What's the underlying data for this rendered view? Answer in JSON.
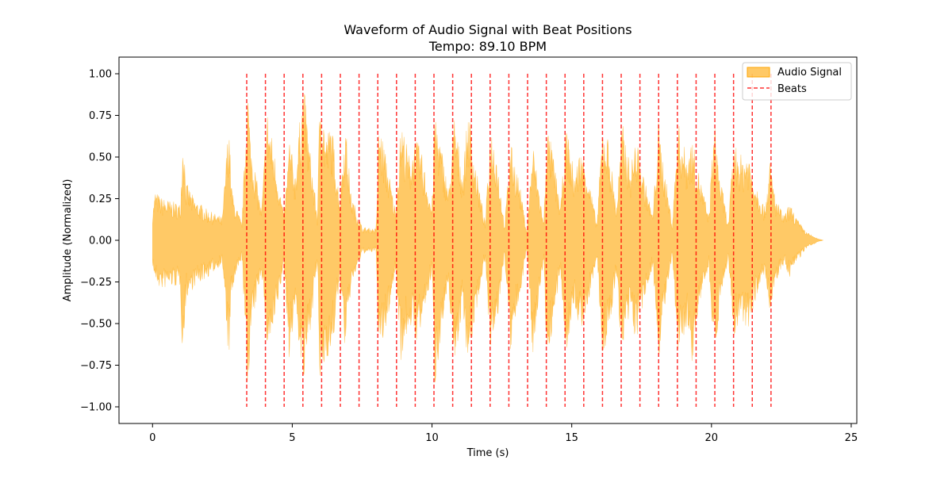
{
  "chart_data": {
    "type": "area",
    "title": "Waveform of Audio Signal with Beat Positions",
    "subtitle": "Tempo: 89.10 BPM",
    "xlabel": "Time (s)",
    "ylabel": "Amplitude (Normalized)",
    "xlim": [
      -1.2,
      25.2
    ],
    "ylim": [
      -1.1,
      1.1
    ],
    "x_ticks": [
      0,
      5,
      10,
      15,
      20,
      25
    ],
    "x_tick_labels": [
      "0",
      "5",
      "10",
      "15",
      "20",
      "25"
    ],
    "y_ticks": [
      1.0,
      0.75,
      0.5,
      0.25,
      0.0,
      -0.25,
      -0.5,
      -0.75,
      -1.0
    ],
    "y_tick_labels": [
      "1.00",
      "0.75",
      "0.50",
      "0.25",
      "0.00",
      "−0.25",
      "−0.50",
      "−0.75",
      "−1.00"
    ],
    "grid": false,
    "legend_position": "top-right",
    "series": [
      {
        "name": "Audio Signal",
        "kind": "filled-waveform",
        "color": "#ffa500",
        "envelope": {
          "x": [
            0.0,
            0.1,
            0.3,
            0.6,
            1.0,
            1.05,
            1.1,
            1.2,
            1.5,
            2.0,
            2.5,
            2.7,
            2.75,
            2.8,
            2.9,
            3.2,
            3.4,
            3.5,
            3.9,
            4.1,
            4.3,
            4.7,
            4.9,
            5.1,
            5.4,
            5.6,
            5.9,
            6.0,
            6.2,
            6.4,
            6.7,
            6.9,
            7.1,
            7.5,
            8.0,
            8.1,
            8.3,
            8.7,
            8.9,
            9.2,
            9.4,
            9.6,
            10.0,
            10.1,
            10.3,
            10.6,
            10.8,
            11.1,
            11.3,
            11.5,
            11.9,
            12.1,
            12.3,
            12.6,
            12.8,
            13.1,
            13.4,
            13.6,
            14.0,
            14.1,
            14.3,
            14.6,
            14.8,
            15.1,
            15.3,
            15.5,
            15.9,
            16.1,
            16.3,
            16.6,
            16.8,
            17.1,
            17.3,
            17.5,
            17.9,
            18.1,
            18.3,
            18.6,
            18.8,
            19.1,
            19.3,
            19.5,
            19.9,
            20.1,
            20.3,
            20.6,
            20.8,
            21.1,
            21.3,
            21.5,
            21.9,
            22.1,
            22.3,
            22.6,
            22.8,
            23.1,
            23.4,
            23.8,
            24.0
          ],
          "upper": [
            0.18,
            0.3,
            0.26,
            0.24,
            0.22,
            0.5,
            0.69,
            0.35,
            0.25,
            0.18,
            0.14,
            0.68,
            0.7,
            0.38,
            0.25,
            0.1,
            0.98,
            0.62,
            0.18,
            0.8,
            0.6,
            0.15,
            0.62,
            0.4,
            0.98,
            0.6,
            0.15,
            0.97,
            0.62,
            0.72,
            0.25,
            0.72,
            0.28,
            0.08,
            0.07,
            0.72,
            0.56,
            0.18,
            0.73,
            0.5,
            0.62,
            0.55,
            0.2,
            0.8,
            0.6,
            0.3,
            0.76,
            0.4,
            0.8,
            0.52,
            0.1,
            0.7,
            0.55,
            0.08,
            0.6,
            0.38,
            0.05,
            0.6,
            0.1,
            0.7,
            0.56,
            0.2,
            0.7,
            0.4,
            0.55,
            0.48,
            0.1,
            0.7,
            0.62,
            0.2,
            0.72,
            0.45,
            0.62,
            0.45,
            0.15,
            0.72,
            0.45,
            0.1,
            0.72,
            0.52,
            0.62,
            0.45,
            0.15,
            0.72,
            0.4,
            0.1,
            0.6,
            0.5,
            0.55,
            0.4,
            0.2,
            0.48,
            0.25,
            0.15,
            0.22,
            0.12,
            0.05,
            0.01,
            0.0
          ],
          "lower": [
            -0.16,
            -0.25,
            -0.3,
            -0.28,
            -0.28,
            -0.6,
            -0.7,
            -0.35,
            -0.28,
            -0.22,
            -0.14,
            -0.68,
            -0.69,
            -0.4,
            -0.28,
            -0.1,
            -0.95,
            -0.6,
            -0.18,
            -0.65,
            -0.6,
            -0.15,
            -0.75,
            -0.4,
            -0.9,
            -0.6,
            -0.15,
            -0.95,
            -0.7,
            -0.72,
            -0.25,
            -0.69,
            -0.28,
            -0.08,
            -0.07,
            -0.72,
            -0.6,
            -0.18,
            -0.73,
            -0.5,
            -0.62,
            -0.55,
            -0.2,
            -0.9,
            -0.6,
            -0.3,
            -0.76,
            -0.4,
            -0.78,
            -0.52,
            -0.1,
            -0.7,
            -0.55,
            -0.08,
            -0.7,
            -0.38,
            -0.05,
            -0.7,
            -0.1,
            -0.72,
            -0.56,
            -0.2,
            -0.7,
            -0.4,
            -0.55,
            -0.48,
            -0.1,
            -0.7,
            -0.62,
            -0.2,
            -0.72,
            -0.45,
            -0.62,
            -0.45,
            -0.15,
            -0.72,
            -0.45,
            -0.1,
            -0.72,
            -0.52,
            -0.8,
            -0.45,
            -0.15,
            -0.72,
            -0.4,
            -0.1,
            -0.6,
            -0.5,
            -0.55,
            -0.4,
            -0.2,
            -0.48,
            -0.25,
            -0.15,
            -0.22,
            -0.12,
            -0.05,
            -0.01,
            0.0
          ]
        }
      },
      {
        "name": "Beats",
        "kind": "vlines",
        "color": "#ff0000",
        "ymin": -1.0,
        "ymax": 1.0,
        "x": [
          3.37,
          4.04,
          4.71,
          5.38,
          6.05,
          6.72,
          7.39,
          8.06,
          8.73,
          9.4,
          10.07,
          10.74,
          11.41,
          12.08,
          12.75,
          13.42,
          14.09,
          14.76,
          15.43,
          16.1,
          16.77,
          17.44,
          18.11,
          18.78,
          19.45,
          20.12,
          20.79,
          21.46,
          22.13
        ]
      }
    ]
  }
}
